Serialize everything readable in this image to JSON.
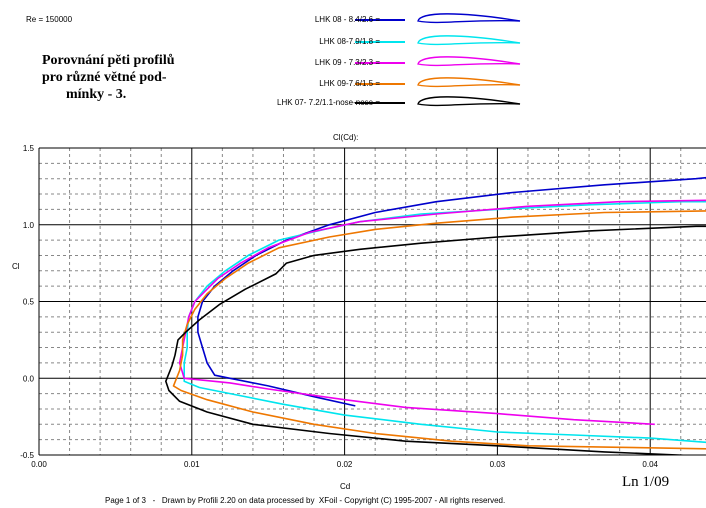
{
  "header": {
    "re_label": "Re = 150000",
    "title_lines": [
      "Porovnání pěti profilů",
      "pro různé větné pod-",
      "mínky - 3."
    ]
  },
  "legend_entries": [
    {
      "label": "LHK 08 - 8.4/2.6 =",
      "color": "#0000cc"
    },
    {
      "label": "LHK 08-7.9/1.8 =",
      "color": "#00e5ee"
    },
    {
      "label": "LHK  09 - 7.3/2.3 =",
      "color": "#ee00ee"
    },
    {
      "label": "LHK 09-7.6/1.5 =",
      "color": "#ee7700"
    },
    {
      "label": "LHK  07- 7.2/1.1-nose-nose =",
      "color": "#000000"
    }
  ],
  "footer": {
    "text": "Page 1 of 3   -   Drawn by Profili 2.20 on data processed by  XFoil - Copyright (C) 1995-2007 - All rights reserved.",
    "stamp": "Ln 1/09"
  },
  "chart_data": {
    "type": "line",
    "title": "Cl(Cd):",
    "xlabel": "Cd",
    "ylabel": "Cl",
    "xlim": [
      0.0,
      0.044
    ],
    "ylim": [
      -0.5,
      1.5
    ],
    "x_ticks": [
      "0.00",
      "0.01",
      "0.02",
      "0.03",
      "0.04"
    ],
    "y_ticks": [
      "-0.5",
      "0.0",
      "0.5",
      "1.0",
      "1.5"
    ],
    "grid": true,
    "series": [
      {
        "name": "LHK 08 - 8.4/2.6",
        "color": "#0000cc",
        "points": [
          [
            0.0207,
            -0.18
          ],
          [
            0.018,
            -0.12
          ],
          [
            0.015,
            -0.05
          ],
          [
            0.0125,
            0.0
          ],
          [
            0.0115,
            0.02
          ],
          [
            0.011,
            0.1
          ],
          [
            0.0107,
            0.2
          ],
          [
            0.0104,
            0.3
          ],
          [
            0.0104,
            0.4
          ],
          [
            0.0107,
            0.5
          ],
          [
            0.0115,
            0.6
          ],
          [
            0.0127,
            0.7
          ],
          [
            0.0142,
            0.8
          ],
          [
            0.0162,
            0.9
          ],
          [
            0.019,
            1.0
          ],
          [
            0.022,
            1.08
          ],
          [
            0.026,
            1.15
          ],
          [
            0.031,
            1.21
          ],
          [
            0.037,
            1.26
          ],
          [
            0.043,
            1.3
          ],
          [
            0.044,
            1.31
          ]
        ]
      },
      {
        "name": "LHK 08-7.9/1.8",
        "color": "#00e5ee",
        "points": [
          [
            0.044,
            -0.42
          ],
          [
            0.04,
            -0.39
          ],
          [
            0.035,
            -0.37
          ],
          [
            0.03,
            -0.35
          ],
          [
            0.025,
            -0.3
          ],
          [
            0.02,
            -0.24
          ],
          [
            0.016,
            -0.17
          ],
          [
            0.013,
            -0.11
          ],
          [
            0.0105,
            -0.06
          ],
          [
            0.0095,
            -0.02
          ],
          [
            0.0095,
            0.1
          ],
          [
            0.0097,
            0.2
          ],
          [
            0.0097,
            0.3
          ],
          [
            0.0098,
            0.4
          ],
          [
            0.0102,
            0.5
          ],
          [
            0.011,
            0.6
          ],
          [
            0.0122,
            0.7
          ],
          [
            0.0137,
            0.8
          ],
          [
            0.0157,
            0.9
          ],
          [
            0.0187,
            0.97
          ],
          [
            0.021,
            1.02
          ],
          [
            0.025,
            1.07
          ],
          [
            0.03,
            1.1
          ],
          [
            0.036,
            1.13
          ],
          [
            0.042,
            1.15
          ],
          [
            0.044,
            1.15
          ]
        ]
      },
      {
        "name": "LHK 09 - 7.3/2.3",
        "color": "#ee00ee",
        "points": [
          [
            0.0403,
            -0.3
          ],
          [
            0.035,
            -0.27
          ],
          [
            0.03,
            -0.23
          ],
          [
            0.024,
            -0.19
          ],
          [
            0.02,
            -0.14
          ],
          [
            0.015,
            -0.07
          ],
          [
            0.0125,
            -0.03
          ],
          [
            0.0095,
            0.0
          ],
          [
            0.0092,
            0.1
          ],
          [
            0.0094,
            0.2
          ],
          [
            0.0096,
            0.3
          ],
          [
            0.0098,
            0.4
          ],
          [
            0.0102,
            0.5
          ],
          [
            0.0107,
            0.55
          ],
          [
            0.0117,
            0.65
          ],
          [
            0.0132,
            0.75
          ],
          [
            0.015,
            0.85
          ],
          [
            0.0177,
            0.95
          ],
          [
            0.021,
            1.02
          ],
          [
            0.026,
            1.07
          ],
          [
            0.032,
            1.12
          ],
          [
            0.038,
            1.15
          ],
          [
            0.044,
            1.16
          ]
        ]
      },
      {
        "name": "LHK 09-7.6/1.5",
        "color": "#ee7700",
        "points": [
          [
            0.044,
            -0.46
          ],
          [
            0.038,
            -0.45
          ],
          [
            0.032,
            -0.44
          ],
          [
            0.027,
            -0.41
          ],
          [
            0.022,
            -0.36
          ],
          [
            0.018,
            -0.3
          ],
          [
            0.014,
            -0.22
          ],
          [
            0.011,
            -0.14
          ],
          [
            0.0093,
            -0.08
          ],
          [
            0.0088,
            -0.05
          ],
          [
            0.0092,
            0.05
          ],
          [
            0.0094,
            0.15
          ],
          [
            0.0094,
            0.25
          ],
          [
            0.0097,
            0.35
          ],
          [
            0.0102,
            0.45
          ],
          [
            0.011,
            0.55
          ],
          [
            0.0122,
            0.65
          ],
          [
            0.0137,
            0.75
          ],
          [
            0.0157,
            0.85
          ],
          [
            0.019,
            0.92
          ],
          [
            0.022,
            0.97
          ],
          [
            0.026,
            1.01
          ],
          [
            0.031,
            1.05
          ],
          [
            0.037,
            1.08
          ],
          [
            0.044,
            1.09
          ]
        ]
      },
      {
        "name": "LHK 07- 7.2/1.1-nose-nose",
        "color": "#000000",
        "points": [
          [
            0.044,
            -0.51
          ],
          [
            0.037,
            -0.48
          ],
          [
            0.03,
            -0.44
          ],
          [
            0.024,
            -0.41
          ],
          [
            0.019,
            -0.36
          ],
          [
            0.014,
            -0.3
          ],
          [
            0.011,
            -0.22
          ],
          [
            0.0092,
            -0.15
          ],
          [
            0.0085,
            -0.08
          ],
          [
            0.0083,
            -0.02
          ],
          [
            0.0087,
            0.08
          ],
          [
            0.0089,
            0.15
          ],
          [
            0.0091,
            0.25
          ],
          [
            0.0096,
            0.3
          ],
          [
            0.0105,
            0.38
          ],
          [
            0.0118,
            0.48
          ],
          [
            0.0135,
            0.58
          ],
          [
            0.0155,
            0.68
          ],
          [
            0.0162,
            0.75
          ],
          [
            0.018,
            0.8
          ],
          [
            0.021,
            0.84
          ],
          [
            0.025,
            0.88
          ],
          [
            0.03,
            0.92
          ],
          [
            0.036,
            0.96
          ],
          [
            0.043,
            0.99
          ],
          [
            0.044,
            0.99
          ]
        ]
      }
    ]
  }
}
